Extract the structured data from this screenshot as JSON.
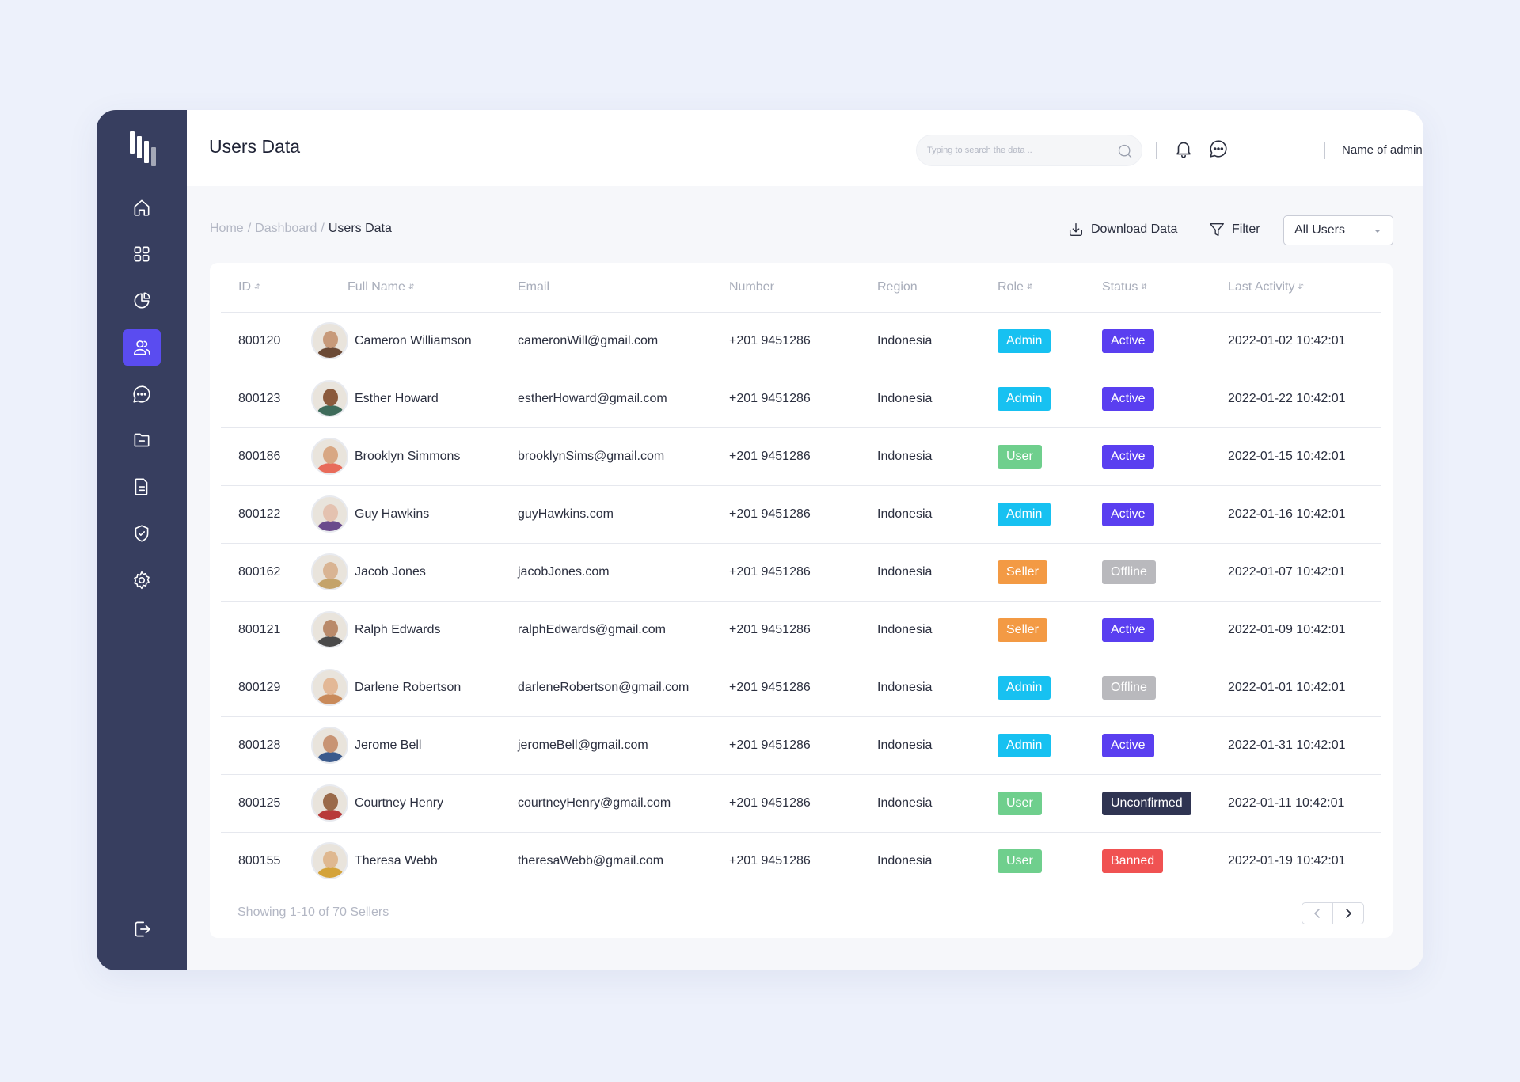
{
  "colors": {
    "sidebar": "#373e5f",
    "accent": "#5a4cf0",
    "admin": "#17c1f1",
    "user": "#6fcf8d",
    "seller": "#f39a44",
    "active": "#5a3ff0",
    "offline": "#b9b9bd",
    "unconfirmed": "#2f3452",
    "banned": "#f05252"
  },
  "sidebar": {
    "items": [
      {
        "icon": "home-icon",
        "active": false
      },
      {
        "icon": "dashboard-grid-icon",
        "active": false
      },
      {
        "icon": "pie-chart-icon",
        "active": false
      },
      {
        "icon": "users-icon",
        "active": true
      },
      {
        "icon": "chat-icon",
        "active": false
      },
      {
        "icon": "folder-icon",
        "active": false
      },
      {
        "icon": "document-icon",
        "active": false
      },
      {
        "icon": "shield-check-icon",
        "active": false
      },
      {
        "icon": "settings-gear-icon",
        "active": false
      }
    ],
    "logout_icon": "logout-icon"
  },
  "header": {
    "title": "Users Data",
    "search_placeholder": "Typing to search the data ..",
    "admin_name": "Name of admin"
  },
  "breadcrumb": {
    "home": "Home",
    "dashboard": "Dashboard",
    "current": "Users Data",
    "separator": "/"
  },
  "toolbar": {
    "download_label": "Download Data",
    "filter_label": "Filter",
    "select_value": "All Users"
  },
  "table": {
    "headers": {
      "id": "ID",
      "full_name": "Full Name",
      "email": "Email",
      "number": "Number",
      "region": "Region",
      "role": "Role",
      "status": "Status",
      "last_activity": "Last Activity"
    },
    "rows": [
      {
        "id": "800120",
        "name": "Cameron Williamson",
        "email": "cameronWill@gmail.com",
        "number": "+201 9451286",
        "region": "Indonesia",
        "role": "Admin",
        "status": "Active",
        "last": "2022-01-02 10:42:01"
      },
      {
        "id": "800123",
        "name": "Esther Howard",
        "email": "estherHoward@gmail.com",
        "number": "+201 9451286",
        "region": "Indonesia",
        "role": "Admin",
        "status": "Active",
        "last": "2022-01-22 10:42:01"
      },
      {
        "id": "800186",
        "name": "Brooklyn Simmons",
        "email": "brooklynSims@gmail.com",
        "number": "+201 9451286",
        "region": "Indonesia",
        "role": "User",
        "status": "Active",
        "last": "2022-01-15 10:42:01"
      },
      {
        "id": "800122",
        "name": "Guy Hawkins",
        "email": "guyHawkins.com",
        "number": "+201 9451286",
        "region": "Indonesia",
        "role": "Admin",
        "status": "Active",
        "last": "2022-01-16 10:42:01"
      },
      {
        "id": "800162",
        "name": "Jacob Jones",
        "email": "jacobJones.com",
        "number": "+201 9451286",
        "region": "Indonesia",
        "role": "Seller",
        "status": "Offline",
        "last": "2022-01-07 10:42:01"
      },
      {
        "id": "800121",
        "name": "Ralph Edwards",
        "email": "ralphEdwards@gmail.com",
        "number": "+201 9451286",
        "region": "Indonesia",
        "role": "Seller",
        "status": "Active",
        "last": "2022-01-09 10:42:01"
      },
      {
        "id": "800129",
        "name": "Darlene Robertson",
        "email": "darleneRobertson@gmail.com",
        "number": "+201 9451286",
        "region": "Indonesia",
        "role": "Admin",
        "status": "Offline",
        "last": "2022-01-01 10:42:01"
      },
      {
        "id": "800128",
        "name": "Jerome Bell",
        "email": "jeromeBell@gmail.com",
        "number": "+201 9451286",
        "region": "Indonesia",
        "role": "Admin",
        "status": "Active",
        "last": "2022-01-31 10:42:01"
      },
      {
        "id": "800125",
        "name": "Courtney Henry",
        "email": "courtneyHenry@gmail.com",
        "number": "+201 9451286",
        "region": "Indonesia",
        "role": "User",
        "status": "Unconfirmed",
        "last": "2022-01-11 10:42:01"
      },
      {
        "id": "800155",
        "name": "Theresa Webb",
        "email": "theresaWebb@gmail.com",
        "number": "+201 9451286",
        "region": "Indonesia",
        "role": "User",
        "status": "Banned",
        "last": "2022-01-19 10:42:01"
      }
    ]
  },
  "footer": {
    "showing_text": "Showing 1-10 of 70 Sellers"
  }
}
